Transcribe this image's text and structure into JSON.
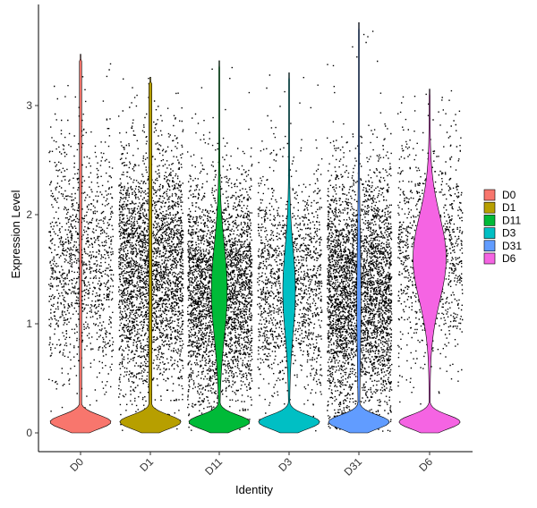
{
  "chart_data": {
    "type": "violin",
    "xlabel": "Identity",
    "ylabel": "Expression Level",
    "categories": [
      "D0",
      "D1",
      "D11",
      "D3",
      "D31",
      "D6"
    ],
    "ylim": [
      -0.2,
      3.9
    ],
    "yticks": [
      0,
      1,
      2,
      3
    ],
    "y_tick_labels": [
      "0",
      "1",
      "2",
      "3"
    ],
    "legend_position": "right",
    "grid": false,
    "series": [
      {
        "name": "D0",
        "color": "#F8766D",
        "max": 3.47,
        "mode_peak_at": 0.15,
        "density_profile": "mostly-zero with thin tail"
      },
      {
        "name": "D1",
        "color": "#B79F00",
        "max": 3.26,
        "mode_peak_at": 0.15,
        "density_profile": "mostly-zero with thin tail"
      },
      {
        "name": "D11",
        "color": "#00BA38",
        "max": 3.41,
        "mode_peak_at": 1.2,
        "density_profile": "bulge around 1-2 plus zero mass"
      },
      {
        "name": "D3",
        "color": "#00BFC4",
        "max": 3.3,
        "mode_peak_at": 1.2,
        "density_profile": "bulge around 1-2 plus zero mass"
      },
      {
        "name": "D31",
        "color": "#619CFF",
        "max": 3.76,
        "mode_peak_at": 0.15,
        "density_profile": "mostly-zero with thin tail"
      },
      {
        "name": "D6",
        "color": "#F564E3",
        "max": 3.15,
        "mode_peak_at": 1.6,
        "density_profile": "wide bulge around 1.6 plus zero mass"
      }
    ]
  }
}
